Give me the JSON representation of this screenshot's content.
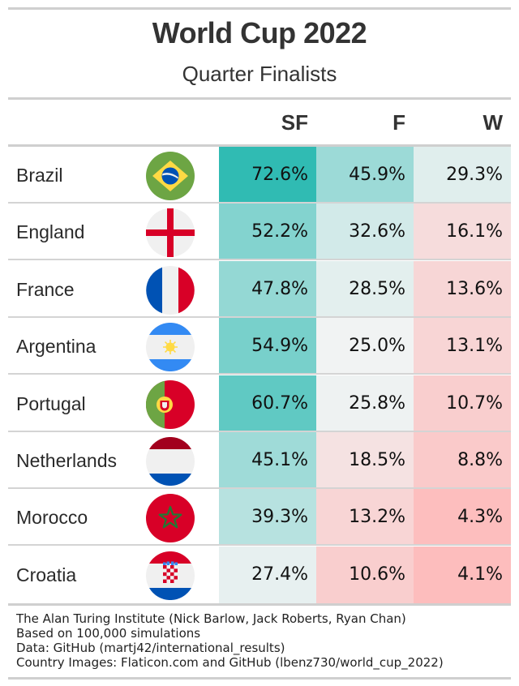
{
  "title": "World Cup 2022",
  "subtitle": "Quarter Finalists",
  "columns": [
    "SF",
    "F",
    "W"
  ],
  "chart_data": {
    "type": "table",
    "title": "World Cup 2022",
    "subtitle": "Quarter Finalists",
    "columns": [
      "SF",
      "F",
      "W"
    ],
    "rows": [
      {
        "country": "Brazil",
        "flag": "brazil-flag-icon",
        "values": [
          72.6,
          45.9,
          29.3
        ],
        "labels": [
          "72.6%",
          "45.9%",
          "29.3%"
        ]
      },
      {
        "country": "England",
        "flag": "england-flag-icon",
        "values": [
          52.2,
          32.6,
          16.1
        ],
        "labels": [
          "52.2%",
          "32.6%",
          "16.1%"
        ]
      },
      {
        "country": "France",
        "flag": "france-flag-icon",
        "values": [
          47.8,
          28.5,
          13.6
        ],
        "labels": [
          "47.8%",
          "28.5%",
          "13.6%"
        ]
      },
      {
        "country": "Argentina",
        "flag": "argentina-flag-icon",
        "values": [
          54.9,
          25.0,
          13.1
        ],
        "labels": [
          "54.9%",
          "25.0%",
          "13.1%"
        ]
      },
      {
        "country": "Portugal",
        "flag": "portugal-flag-icon",
        "values": [
          60.7,
          25.8,
          10.7
        ],
        "labels": [
          "60.7%",
          "25.8%",
          "10.7%"
        ]
      },
      {
        "country": "Netherlands",
        "flag": "netherlands-flag-icon",
        "values": [
          45.1,
          18.5,
          8.8
        ],
        "labels": [
          "45.1%",
          "18.5%",
          "8.8%"
        ]
      },
      {
        "country": "Morocco",
        "flag": "morocco-flag-icon",
        "values": [
          39.3,
          13.2,
          4.3
        ],
        "labels": [
          "39.3%",
          "13.2%",
          "4.3%"
        ]
      },
      {
        "country": "Croatia",
        "flag": "croatia-flag-icon",
        "values": [
          27.4,
          10.6,
          4.1
        ],
        "labels": [
          "27.4%",
          "10.6%",
          "4.1%"
        ]
      }
    ],
    "color_scale": {
      "low": "#ffb3b3",
      "mid": "#f1f3f3",
      "high": "#26b8b0"
    }
  },
  "footer": [
    "The Alan Turing Institute (Nick Barlow, Jack Roberts, Ryan Chan)",
    "Based on 100,000 simulations",
    "Data: GitHub (martj42/international_results)",
    "Country Images: Flaticon.com and GitHub (lbenz730/world_cup_2022)"
  ]
}
